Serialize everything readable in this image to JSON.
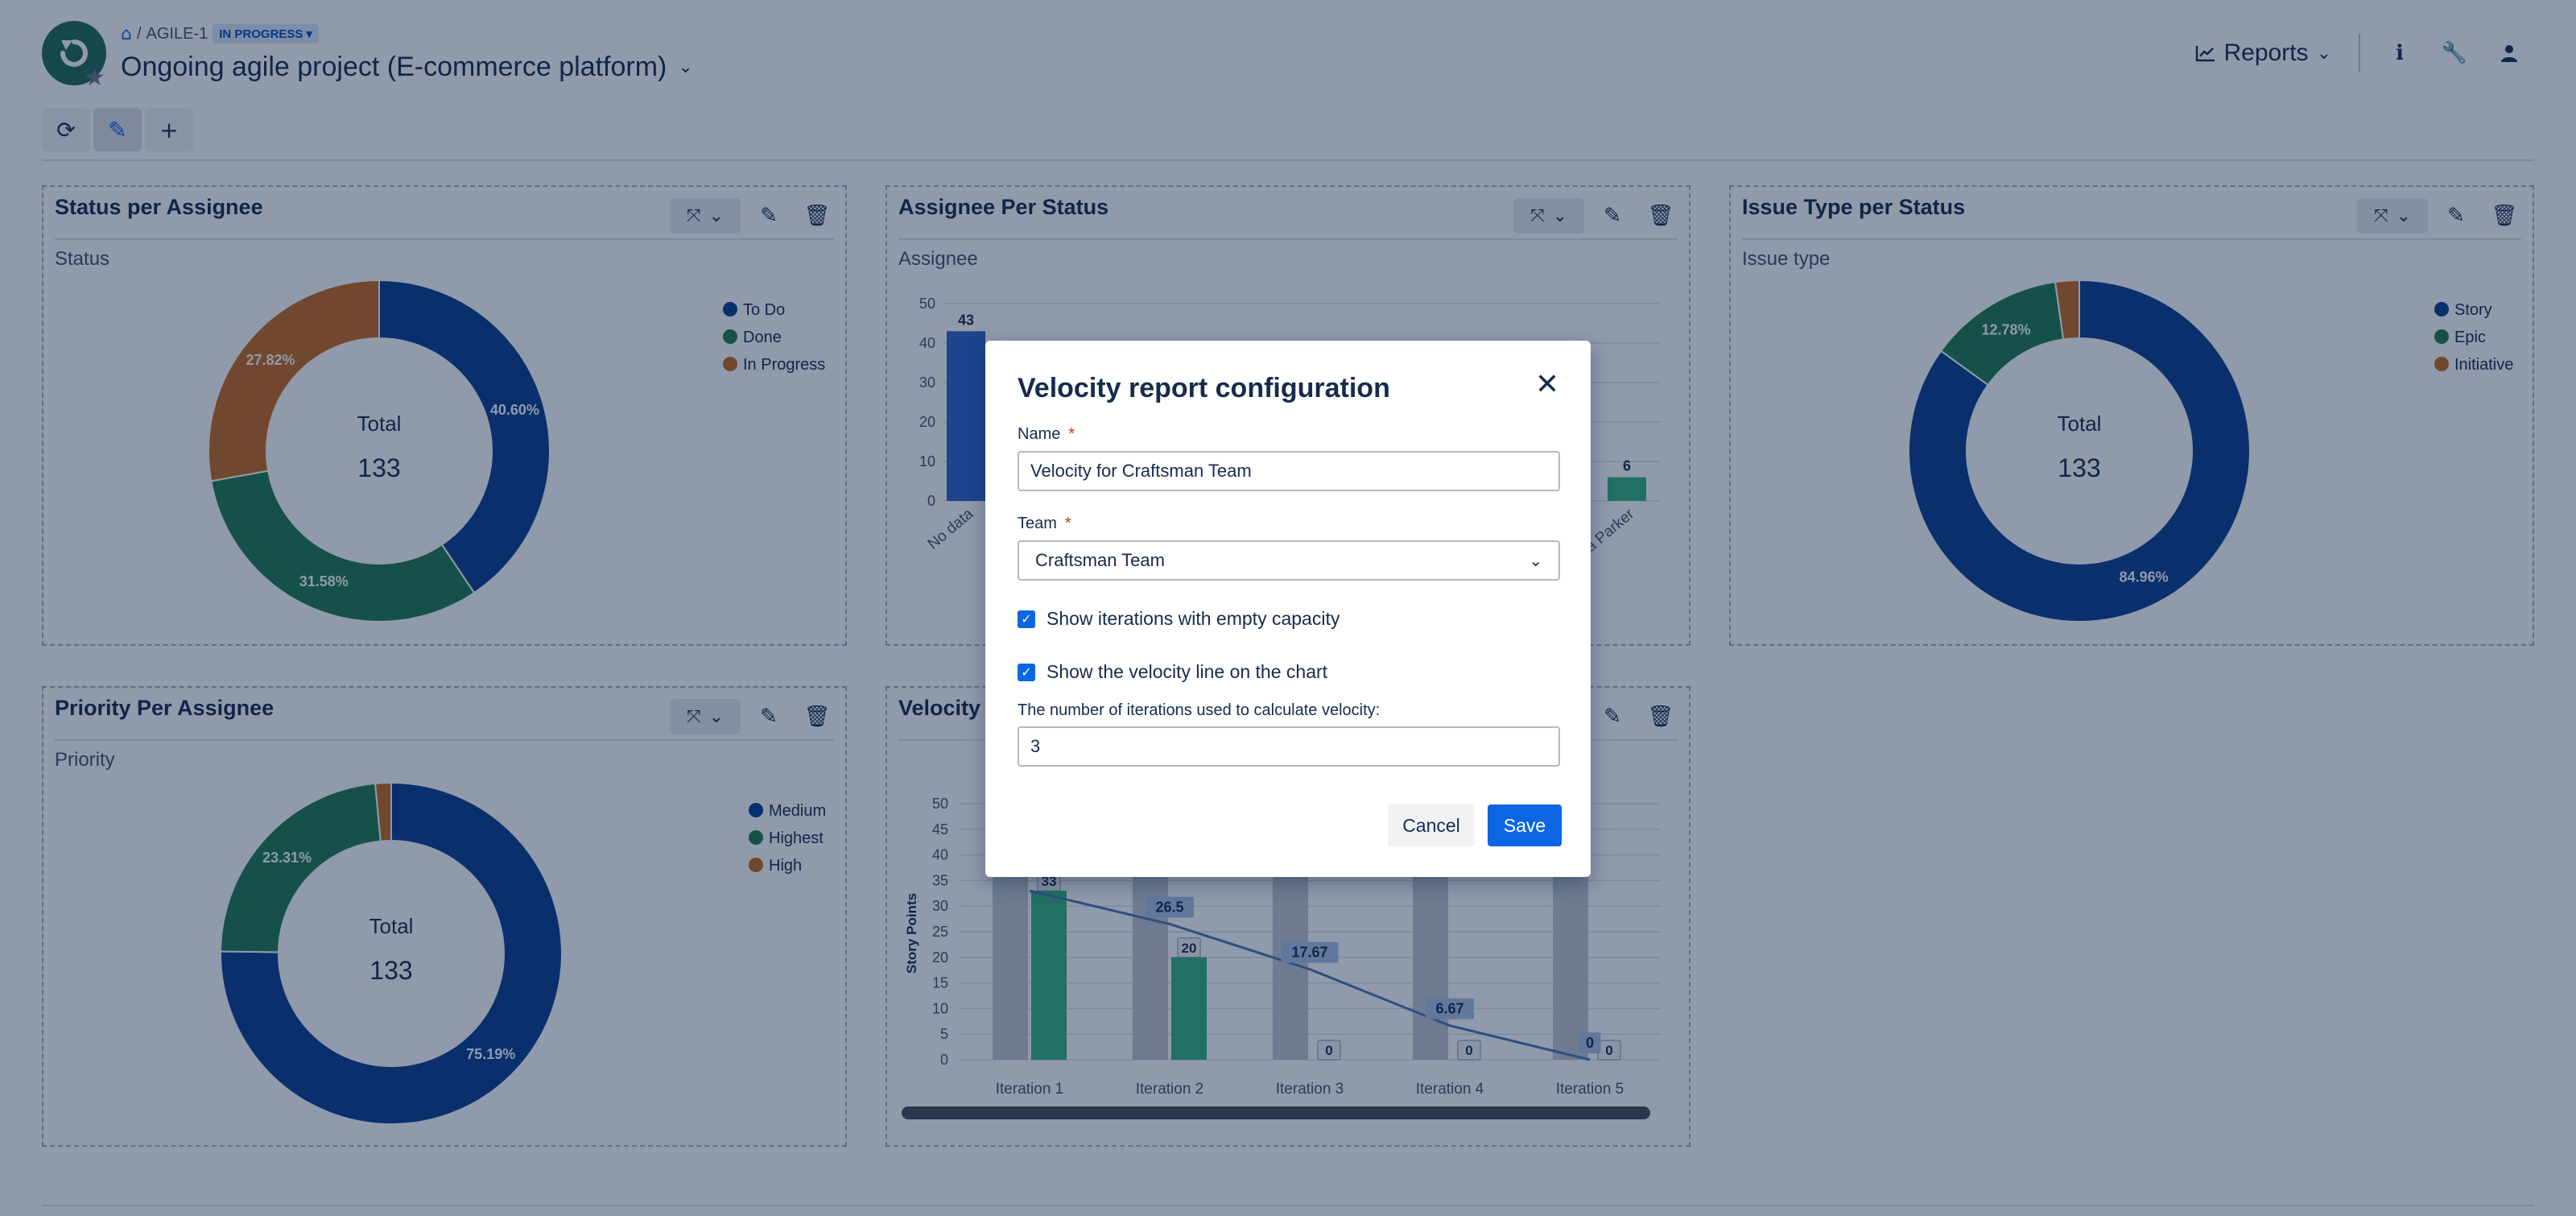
{
  "header": {
    "breadcrumb_key": "AGILE-1",
    "status_badge": "IN PROGRESS",
    "project_title": "Ongoing agile project (E-commerce platform)",
    "reports_label": "Reports"
  },
  "gadgets": {
    "status_per_assignee": {
      "title": "Status per Assignee",
      "subtitle": "Status",
      "total_label": "Total",
      "total_value": "133"
    },
    "assignee_per_status": {
      "title": "Assignee Per Status",
      "subtitle": "Assignee"
    },
    "issue_type_per_status": {
      "title": "Issue Type per Status",
      "subtitle": "Issue type",
      "total_label": "Total",
      "total_value": "133"
    },
    "priority_per_assignee": {
      "title": "Priority Per Assignee",
      "subtitle": "Priority",
      "total_label": "Total",
      "total_value": "133"
    },
    "velocity": {
      "title": "Velocity f"
    }
  },
  "colors": {
    "blue": "#0c3d91",
    "green": "#1f7a4f",
    "orange": "#c66a1f",
    "bar_blue": "#2f63c9",
    "bar_green": "#36b37e",
    "bar_gray": "#c1c7d0",
    "velocity_line": "#4c78b5"
  },
  "chart_data": [
    {
      "type": "pie",
      "title": "Status per Assignee",
      "labels": [
        "To Do",
        "Done",
        "In Progress"
      ],
      "values": [
        40.6,
        31.58,
        27.82
      ],
      "value_labels": [
        "40.60%",
        "31.58%",
        "27.82%"
      ],
      "colors": [
        "#0c3d91",
        "#1f7a4f",
        "#c66a1f"
      ],
      "legend": "top-right"
    },
    {
      "type": "bar",
      "title": "Assignee Per Status",
      "categories": [
        "No data",
        "ia Parker"
      ],
      "values": [
        43,
        6
      ],
      "yticks": [
        0,
        10,
        20,
        30,
        40,
        50
      ],
      "ylim": [
        0,
        50
      ]
    },
    {
      "type": "pie",
      "title": "Issue Type per Status",
      "labels": [
        "Story",
        "Epic",
        "Initiative"
      ],
      "values": [
        84.96,
        12.78,
        2.26
      ],
      "value_labels": [
        "84.96%",
        "12.78%",
        ""
      ],
      "colors": [
        "#0c3d91",
        "#1f7a4f",
        "#c66a1f"
      ],
      "legend": "top-right"
    },
    {
      "type": "pie",
      "title": "Priority Per Assignee",
      "labels": [
        "Medium",
        "Highest",
        "High"
      ],
      "values": [
        75.19,
        23.31,
        1.5
      ],
      "value_labels": [
        "75.19%",
        "23.31%",
        ""
      ],
      "colors": [
        "#0c3d91",
        "#1f7a4f",
        "#c66a1f"
      ],
      "legend": "top-right"
    },
    {
      "type": "bar",
      "title": "",
      "ylabel": "Story Points",
      "categories": [
        "Iteration 1",
        "Iteration 2",
        "Iteration 3",
        "Iteration 4",
        "Iteration 5"
      ],
      "yticks": [
        0,
        5,
        10,
        15,
        20,
        25,
        30,
        35,
        40,
        45,
        50
      ],
      "ylim": [
        0,
        50
      ],
      "series": [
        {
          "values": [
            50,
            50,
            50,
            50,
            50
          ]
        },
        {
          "values": [
            33,
            20,
            0,
            0,
            0
          ]
        }
      ],
      "value_labels": [
        "33",
        "20",
        "0",
        "0",
        "0"
      ],
      "velocity_line": [
        33,
        26.5,
        17.67,
        6.67,
        0
      ],
      "velocity_labels": [
        "",
        "26.5",
        "17.67",
        "6.67",
        "0"
      ]
    }
  ],
  "modal": {
    "title": "Velocity report configuration",
    "name_label": "Name",
    "name_value": "Velocity for Craftsman Team",
    "team_label": "Team",
    "team_value": "Craftsman Team",
    "check1_label": "Show iterations with empty capacity",
    "check2_label": "Show the velocity line on the chart",
    "iterations_label": "The number of iterations used to calculate velocity:",
    "iterations_value": "3",
    "cancel_label": "Cancel",
    "save_label": "Save"
  }
}
